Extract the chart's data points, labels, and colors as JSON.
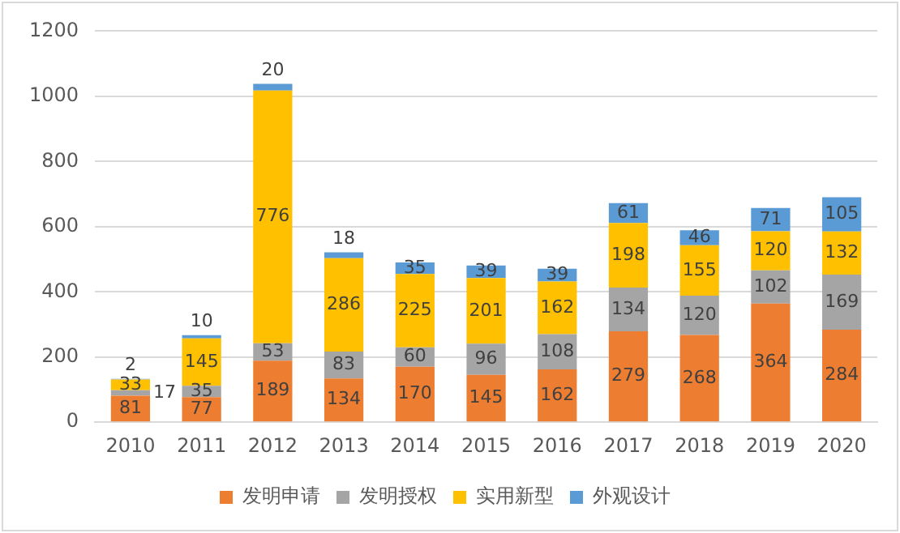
{
  "chart_data": {
    "type": "bar",
    "stacked": true,
    "categories": [
      "2010",
      "2011",
      "2012",
      "2013",
      "2014",
      "2015",
      "2016",
      "2017",
      "2018",
      "2019",
      "2020"
    ],
    "series": [
      {
        "name": "发明申请",
        "color": "#ed7d31",
        "values": [
          81,
          77,
          189,
          134,
          170,
          145,
          162,
          279,
          268,
          364,
          284
        ]
      },
      {
        "name": "发明授权",
        "color": "#a5a5a5",
        "values": [
          17,
          35,
          53,
          83,
          60,
          96,
          108,
          134,
          120,
          102,
          169
        ]
      },
      {
        "name": "实用新型",
        "color": "#ffc000",
        "values": [
          33,
          145,
          776,
          286,
          225,
          201,
          162,
          198,
          155,
          120,
          132
        ]
      },
      {
        "name": "外观设计",
        "color": "#5b9bd5",
        "values": [
          2,
          10,
          20,
          18,
          35,
          39,
          39,
          61,
          46,
          71,
          105
        ]
      }
    ],
    "ylim": [
      0,
      1200
    ],
    "yticks": [
      0,
      200,
      400,
      600,
      800,
      1000,
      1200
    ],
    "grid": "y",
    "legend": "bottom",
    "data_labels": true
  }
}
